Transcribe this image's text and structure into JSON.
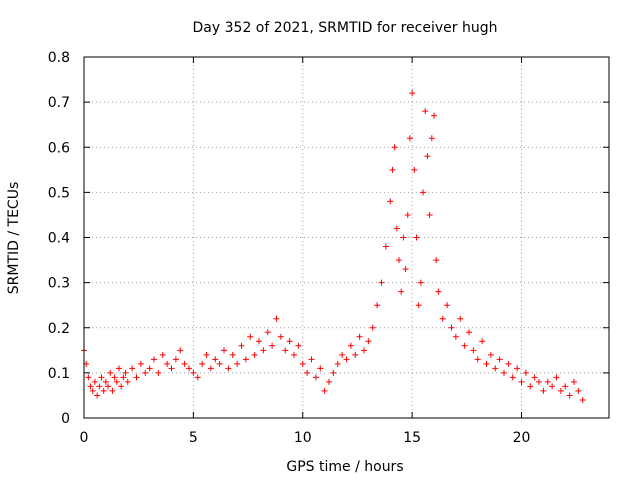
{
  "chart_data": {
    "type": "scatter",
    "title": "Day 352 of 2021, SRMTID for receiver hugh",
    "xlabel": "GPS time / hours",
    "ylabel": "SRMTID / TECUs",
    "xlim": [
      0,
      24
    ],
    "ylim": [
      0,
      0.8
    ],
    "xticks": [
      0,
      5,
      10,
      15,
      20
    ],
    "xtick_labels": [
      "0",
      "5",
      "10",
      "15",
      "20"
    ],
    "yticks": [
      0,
      0.1,
      0.2,
      0.3,
      0.4,
      0.5,
      0.6,
      0.7,
      0.8
    ],
    "ytick_labels": [
      "0",
      "0.1",
      "0.2",
      "0.3",
      "0.4",
      "0.5",
      "0.6",
      "0.7",
      "0.8"
    ],
    "grid": true,
    "marker": "+",
    "color": "#ff0000",
    "series": [
      {
        "name": "SRMTID",
        "points": [
          [
            0.0,
            0.15
          ],
          [
            0.1,
            0.12
          ],
          [
            0.2,
            0.09
          ],
          [
            0.3,
            0.07
          ],
          [
            0.4,
            0.06
          ],
          [
            0.5,
            0.08
          ],
          [
            0.6,
            0.05
          ],
          [
            0.7,
            0.07
          ],
          [
            0.8,
            0.09
          ],
          [
            0.9,
            0.06
          ],
          [
            1.0,
            0.08
          ],
          [
            1.1,
            0.07
          ],
          [
            1.2,
            0.1
          ],
          [
            1.3,
            0.06
          ],
          [
            1.4,
            0.09
          ],
          [
            1.5,
            0.08
          ],
          [
            1.6,
            0.11
          ],
          [
            1.7,
            0.07
          ],
          [
            1.8,
            0.09
          ],
          [
            1.9,
            0.1
          ],
          [
            2.0,
            0.08
          ],
          [
            2.2,
            0.11
          ],
          [
            2.4,
            0.09
          ],
          [
            2.6,
            0.12
          ],
          [
            2.8,
            0.1
          ],
          [
            3.0,
            0.11
          ],
          [
            3.2,
            0.13
          ],
          [
            3.4,
            0.1
          ],
          [
            3.6,
            0.14
          ],
          [
            3.8,
            0.12
          ],
          [
            4.0,
            0.11
          ],
          [
            4.2,
            0.13
          ],
          [
            4.4,
            0.15
          ],
          [
            4.6,
            0.12
          ],
          [
            4.8,
            0.11
          ],
          [
            5.0,
            0.1
          ],
          [
            5.2,
            0.09
          ],
          [
            5.4,
            0.12
          ],
          [
            5.6,
            0.14
          ],
          [
            5.8,
            0.11
          ],
          [
            6.0,
            0.13
          ],
          [
            6.2,
            0.12
          ],
          [
            6.4,
            0.15
          ],
          [
            6.6,
            0.11
          ],
          [
            6.8,
            0.14
          ],
          [
            7.0,
            0.12
          ],
          [
            7.2,
            0.16
          ],
          [
            7.4,
            0.13
          ],
          [
            7.6,
            0.18
          ],
          [
            7.8,
            0.14
          ],
          [
            8.0,
            0.17
          ],
          [
            8.2,
            0.15
          ],
          [
            8.4,
            0.19
          ],
          [
            8.6,
            0.16
          ],
          [
            8.8,
            0.22
          ],
          [
            9.0,
            0.18
          ],
          [
            9.2,
            0.15
          ],
          [
            9.4,
            0.17
          ],
          [
            9.6,
            0.14
          ],
          [
            9.8,
            0.16
          ],
          [
            10.0,
            0.12
          ],
          [
            10.2,
            0.1
          ],
          [
            10.4,
            0.13
          ],
          [
            10.6,
            0.09
          ],
          [
            10.8,
            0.11
          ],
          [
            11.0,
            0.06
          ],
          [
            11.2,
            0.08
          ],
          [
            11.4,
            0.1
          ],
          [
            11.6,
            0.12
          ],
          [
            11.8,
            0.14
          ],
          [
            12.0,
            0.13
          ],
          [
            12.2,
            0.16
          ],
          [
            12.4,
            0.14
          ],
          [
            12.6,
            0.18
          ],
          [
            12.8,
            0.15
          ],
          [
            13.0,
            0.17
          ],
          [
            13.2,
            0.2
          ],
          [
            13.4,
            0.25
          ],
          [
            13.6,
            0.3
          ],
          [
            13.8,
            0.38
          ],
          [
            14.0,
            0.48
          ],
          [
            14.1,
            0.55
          ],
          [
            14.2,
            0.6
          ],
          [
            14.3,
            0.42
          ],
          [
            14.4,
            0.35
          ],
          [
            14.5,
            0.28
          ],
          [
            14.6,
            0.4
          ],
          [
            14.7,
            0.33
          ],
          [
            14.8,
            0.45
          ],
          [
            14.9,
            0.62
          ],
          [
            15.0,
            0.72
          ],
          [
            15.1,
            0.55
          ],
          [
            15.2,
            0.4
          ],
          [
            15.3,
            0.25
          ],
          [
            15.4,
            0.3
          ],
          [
            15.5,
            0.5
          ],
          [
            15.6,
            0.68
          ],
          [
            15.7,
            0.58
          ],
          [
            15.8,
            0.45
          ],
          [
            15.9,
            0.62
          ],
          [
            16.0,
            0.67
          ],
          [
            16.1,
            0.35
          ],
          [
            16.2,
            0.28
          ],
          [
            16.4,
            0.22
          ],
          [
            16.6,
            0.25
          ],
          [
            16.8,
            0.2
          ],
          [
            17.0,
            0.18
          ],
          [
            17.2,
            0.22
          ],
          [
            17.4,
            0.16
          ],
          [
            17.6,
            0.19
          ],
          [
            17.8,
            0.15
          ],
          [
            18.0,
            0.13
          ],
          [
            18.2,
            0.17
          ],
          [
            18.4,
            0.12
          ],
          [
            18.6,
            0.14
          ],
          [
            18.8,
            0.11
          ],
          [
            19.0,
            0.13
          ],
          [
            19.2,
            0.1
          ],
          [
            19.4,
            0.12
          ],
          [
            19.6,
            0.09
          ],
          [
            19.8,
            0.11
          ],
          [
            20.0,
            0.08
          ],
          [
            20.2,
            0.1
          ],
          [
            20.4,
            0.07
          ],
          [
            20.6,
            0.09
          ],
          [
            20.8,
            0.08
          ],
          [
            21.0,
            0.06
          ],
          [
            21.2,
            0.08
          ],
          [
            21.4,
            0.07
          ],
          [
            21.6,
            0.09
          ],
          [
            21.8,
            0.06
          ],
          [
            22.0,
            0.07
          ],
          [
            22.2,
            0.05
          ],
          [
            22.4,
            0.08
          ],
          [
            22.6,
            0.06
          ],
          [
            22.8,
            0.04
          ]
        ]
      }
    ]
  }
}
